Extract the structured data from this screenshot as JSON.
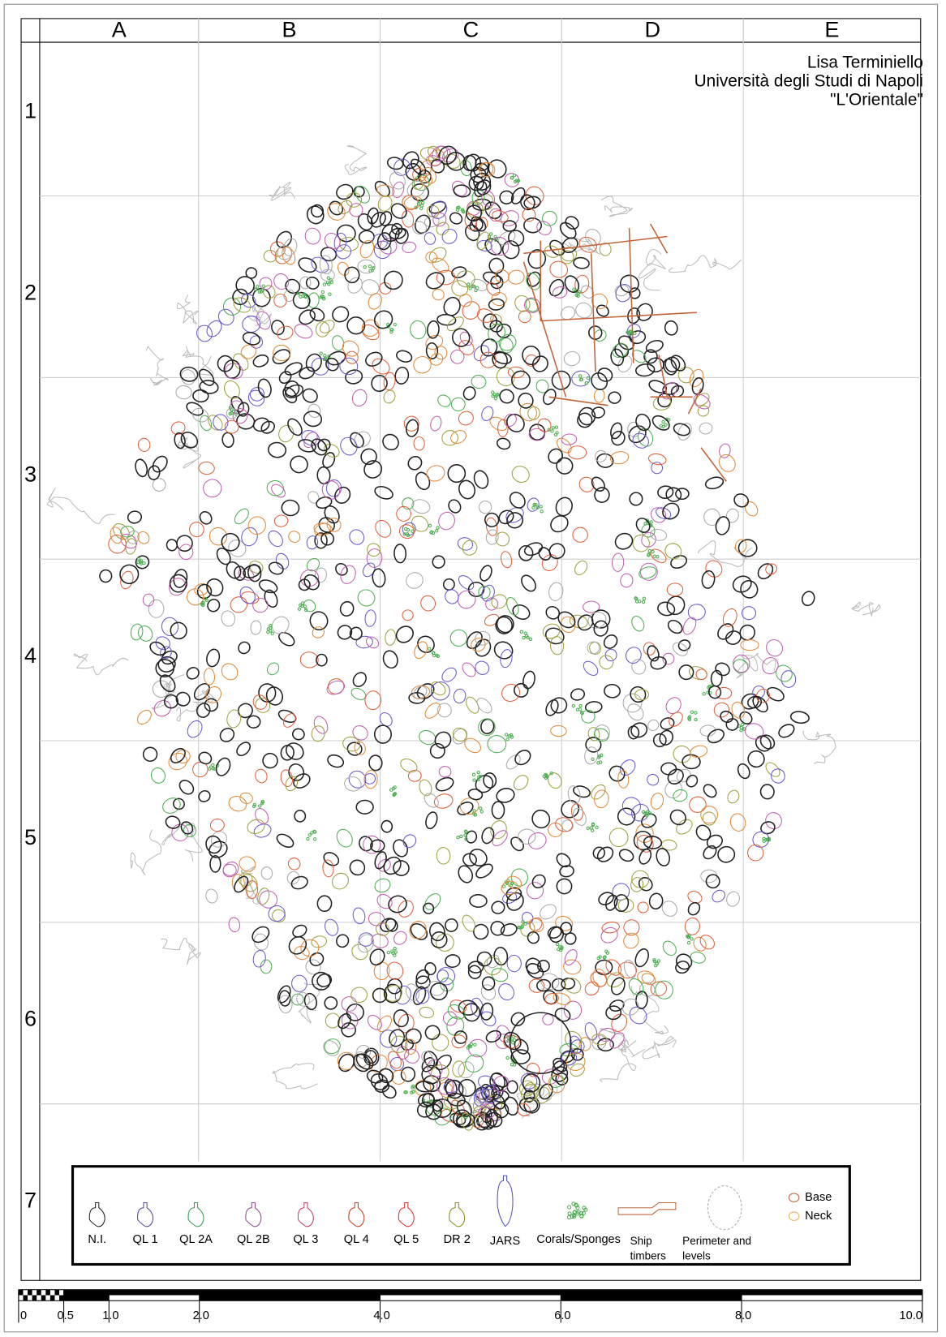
{
  "columns": [
    "A",
    "B",
    "C",
    "D",
    "E"
  ],
  "rows": [
    "1",
    "2",
    "3",
    "4",
    "5",
    "6",
    "7"
  ],
  "credit": [
    "Lisa Terminiello",
    "Università degli Studi di Napoli",
    "\"L'Orientale\""
  ],
  "legend": {
    "items": [
      {
        "label": "N.I."
      },
      {
        "label": "QL 1"
      },
      {
        "label": "QL 2A"
      },
      {
        "label": "QL 2B"
      },
      {
        "label": "QL 3"
      },
      {
        "label": "QL 4"
      },
      {
        "label": "QL 5"
      },
      {
        "label": "DR 2"
      },
      {
        "label": "JARS"
      },
      {
        "label": "Corals/Sponges"
      },
      {
        "lines": [
          "Ship",
          "timbers"
        ]
      },
      {
        "lines": [
          "Perimeter  and",
          "levels"
        ]
      }
    ],
    "markers": [
      {
        "label": "Base"
      },
      {
        "label": "Neck"
      }
    ]
  },
  "scale_bar": {
    "ticks": [
      {
        "value": 0,
        "label": "0"
      },
      {
        "value": 0.5,
        "label": "0.5"
      },
      {
        "value": 1,
        "label": "1.0"
      },
      {
        "value": 2,
        "label": "2.0"
      },
      {
        "value": 4,
        "label": "4.0"
      },
      {
        "value": 6,
        "label": "6.0"
      },
      {
        "value": 8,
        "label": "8.0"
      },
      {
        "value": 10,
        "label": "10.0"
      }
    ]
  }
}
